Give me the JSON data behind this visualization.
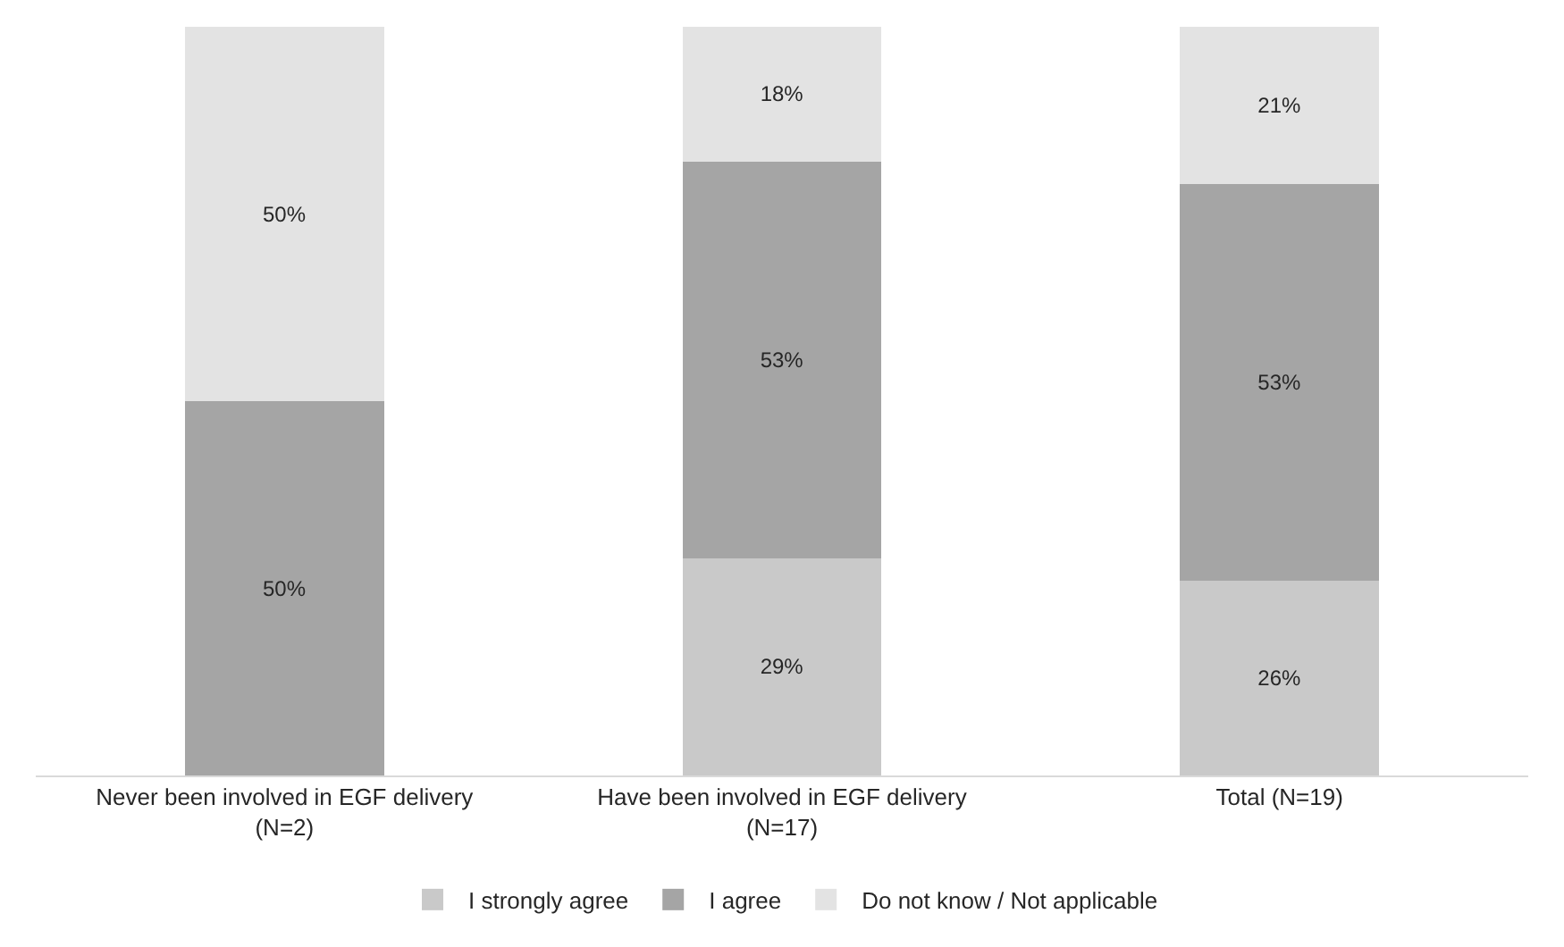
{
  "chart_data": {
    "type": "bar",
    "stacked": true,
    "categories": [
      "Never been involved in EGF delivery\n(N=2)",
      "Have been involved in EGF delivery\n(N=17)",
      "Total (N=19)"
    ],
    "series": [
      {
        "name": "I strongly agree",
        "color": "#c9c9c9",
        "values": [
          0,
          29,
          26
        ],
        "value_labels": [
          null,
          "29%",
          "26%"
        ]
      },
      {
        "name": "I agree",
        "color": "#a5a5a5",
        "values": [
          50,
          53,
          53
        ],
        "value_labels": [
          "50%",
          "53%",
          "53%"
        ]
      },
      {
        "name": "Do not know / Not applicable",
        "color": "#e3e3e3",
        "values": [
          50,
          18,
          21
        ],
        "value_labels": [
          "50%",
          "18%",
          "21%"
        ]
      }
    ],
    "ylim": [
      0,
      100
    ],
    "legend": "bottom"
  }
}
